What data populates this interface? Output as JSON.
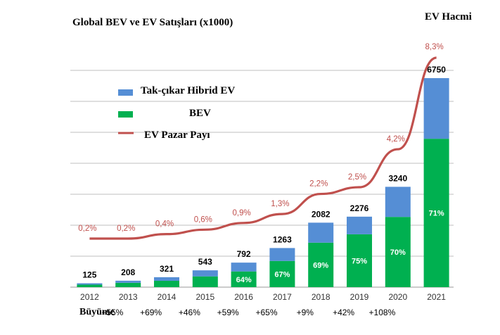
{
  "chart_data": {
    "type": "bar",
    "title": "Global BEV ve EV Satışları  (x1000)",
    "right_axis_title": "EV Hacmi",
    "categories": [
      "2012",
      "2013",
      "2014",
      "2015",
      "2016",
      "2017",
      "2018",
      "2019",
      "2020",
      "2021"
    ],
    "totals": [
      125,
      208,
      321,
      543,
      792,
      1263,
      2082,
      2276,
      3240,
      6750
    ],
    "series": [
      {
        "name": "Tak-çıkar Hibrid EV",
        "color": "#558ed5",
        "values": [
          45,
          68,
          116,
          195,
          285,
          417,
          646,
          569,
          972,
          1958
        ]
      },
      {
        "name": "BEV",
        "color": "#00b050",
        "values": [
          80,
          140,
          205,
          348,
          507,
          846,
          1436,
          1707,
          2268,
          4792
        ]
      }
    ],
    "bev_share_labels": [
      "",
      "",
      "",
      "",
      "64%",
      "67%",
      "69%",
      "75%",
      "70%",
      "71%"
    ],
    "market_share": {
      "name": "EV Pazar Payı",
      "color": "#c0504d",
      "labels": [
        "0,2%",
        "0,2%",
        "0,4%",
        "0,6%",
        "0,9%",
        "1,3%",
        "2,2%",
        "2,5%",
        "4,2%",
        "8,3%"
      ],
      "values": [
        0.2,
        0.2,
        0.4,
        0.6,
        0.9,
        1.3,
        2.2,
        2.5,
        4.2,
        8.3
      ]
    },
    "growth_label": "Büyüme",
    "growth": [
      "",
      "+55%",
      "+69%",
      "+46%",
      "+59%",
      "+65%",
      "+9%",
      "+42%",
      "+108%"
    ],
    "legend_position": "upper-left",
    "grid": true
  }
}
